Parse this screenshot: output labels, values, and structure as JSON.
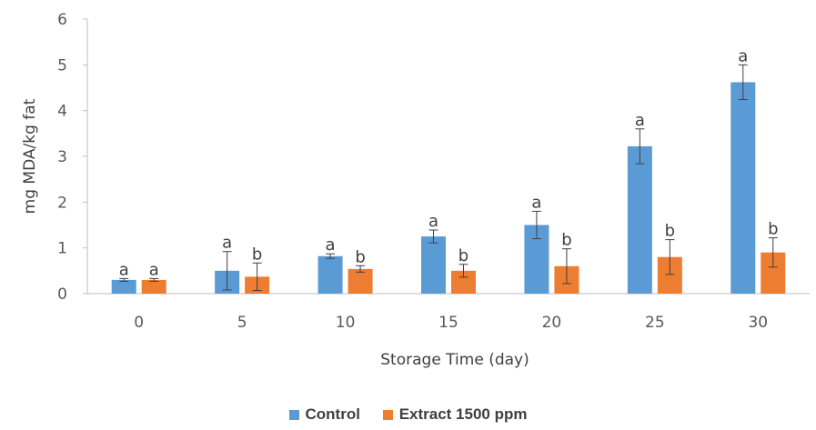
{
  "chart_data": {
    "type": "bar",
    "title": "",
    "xlabel": "Storage Time (day)",
    "ylabel": "mg MDA/kg fat",
    "ylim": [
      0,
      6
    ],
    "yticks": [
      "0",
      "1",
      "2",
      "3",
      "4",
      "5",
      "6"
    ],
    "categories": [
      "0",
      "5",
      "10",
      "15",
      "20",
      "25",
      "30"
    ],
    "series": [
      {
        "name": "Control",
        "color": "#5b9bd5",
        "values": [
          0.3,
          0.5,
          0.82,
          1.25,
          1.5,
          3.22,
          4.62
        ],
        "errors": [
          0.03,
          0.42,
          0.05,
          0.14,
          0.3,
          0.38,
          0.38
        ],
        "labels": [
          "a",
          "a",
          "a",
          "a",
          "a",
          "a",
          "a"
        ]
      },
      {
        "name": "Extract 1500 ppm",
        "color": "#ed7d31",
        "values": [
          0.3,
          0.37,
          0.54,
          0.5,
          0.6,
          0.8,
          0.9
        ],
        "errors": [
          0.03,
          0.3,
          0.07,
          0.14,
          0.38,
          0.38,
          0.32
        ],
        "labels": [
          "a",
          "b",
          "b",
          "b",
          "b",
          "b",
          "b"
        ]
      }
    ],
    "grid": false,
    "legend_position": "bottom"
  }
}
